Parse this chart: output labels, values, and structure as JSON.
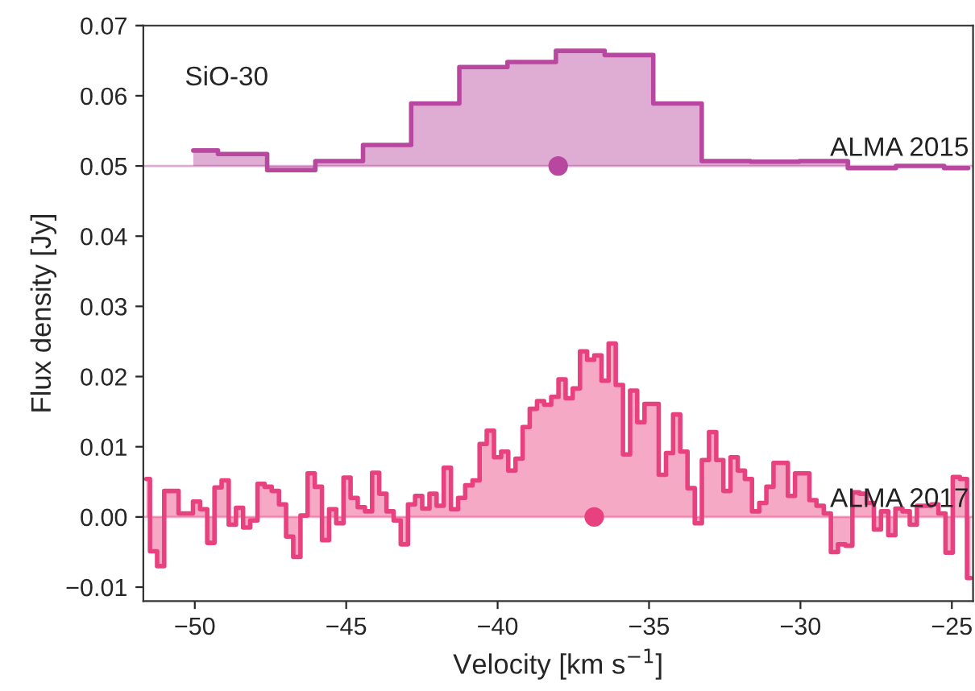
{
  "chart_data": {
    "type": "step",
    "xlabel": "Velocity [km s$^{−1}$]",
    "ylabel": "Flux density [Jy]",
    "annotations": [
      "SiO-30"
    ],
    "xlim": [
      -51.7,
      -24.3
    ],
    "xticks": [
      {
        "value": -50,
        "label": "−50"
      },
      {
        "value": -45,
        "label": "−45"
      },
      {
        "value": -40,
        "label": "−40"
      },
      {
        "value": -35,
        "label": "−35"
      },
      {
        "value": -30,
        "label": "−30"
      },
      {
        "value": -25,
        "label": "−25"
      }
    ],
    "ylim": [
      -0.012,
      0.07
    ],
    "yticks": [
      {
        "value": -0.01,
        "label": "−0.01"
      },
      {
        "value": 0.0,
        "label": "0.00"
      },
      {
        "value": 0.01,
        "label": "0.01"
      },
      {
        "value": 0.02,
        "label": "0.02"
      },
      {
        "value": 0.03,
        "label": "0.03"
      },
      {
        "value": 0.04,
        "label": "0.04"
      },
      {
        "value": 0.05,
        "label": "0.05"
      },
      {
        "value": 0.06,
        "label": "0.06"
      },
      {
        "value": 0.07,
        "label": "0.07"
      }
    ],
    "grid": false,
    "legend": false,
    "ref_lines": [
      {
        "axis": "y",
        "value": 0.05,
        "color": "#dfa9d2"
      },
      {
        "axis": "y",
        "value": 0.0,
        "color": "#f3a9c5"
      }
    ],
    "series": [
      {
        "name": "ALMA 2015",
        "color": "#b8489f",
        "x": [
          -50.05,
          -48.42,
          -46.8,
          -45.24,
          -43.65,
          -42.06,
          -40.47,
          -38.88,
          -37.27,
          -35.66,
          -34.06,
          -32.46,
          -30.84,
          -29.23,
          -27.64,
          -26.05,
          -24.46
        ],
        "values": [
          0.0522,
          0.0517,
          0.0494,
          0.0507,
          0.053,
          0.0589,
          0.0641,
          0.0648,
          0.0664,
          0.0658,
          0.0589,
          0.0507,
          0.0506,
          0.0507,
          0.0497,
          0.05,
          0.0497
        ]
      },
      {
        "name": "ALMA 2017",
        "color": "#e8417f",
        "x": [
          -51.6,
          -51.36,
          -51.13,
          -50.89,
          -50.65,
          -50.42,
          -50.18,
          -49.94,
          -49.71,
          -49.47,
          -49.23,
          -49.0,
          -48.76,
          -48.52,
          -48.29,
          -48.05,
          -47.81,
          -47.58,
          -47.34,
          -47.1,
          -46.87,
          -46.63,
          -46.39,
          -46.16,
          -45.92,
          -45.68,
          -45.45,
          -45.21,
          -44.97,
          -44.74,
          -44.5,
          -44.26,
          -44.03,
          -43.79,
          -43.55,
          -43.32,
          -43.08,
          -42.84,
          -42.61,
          -42.37,
          -42.13,
          -41.9,
          -41.66,
          -41.42,
          -41.19,
          -40.95,
          -40.71,
          -40.48,
          -40.24,
          -40.0,
          -39.77,
          -39.53,
          -39.29,
          -39.06,
          -38.82,
          -38.58,
          -38.35,
          -38.11,
          -37.87,
          -37.64,
          -37.4,
          -37.16,
          -36.93,
          -36.69,
          -36.45,
          -36.22,
          -35.98,
          -35.74,
          -35.51,
          -35.27,
          -35.03,
          -34.8,
          -34.56,
          -34.32,
          -34.09,
          -33.85,
          -33.61,
          -33.37,
          -33.14,
          -32.9,
          -32.66,
          -32.43,
          -32.19,
          -31.95,
          -31.72,
          -31.48,
          -31.24,
          -31.01,
          -30.77,
          -30.53,
          -30.3,
          -30.06,
          -29.82,
          -29.59,
          -29.35,
          -29.11,
          -28.88,
          -28.64,
          -28.4,
          -28.17,
          -27.93,
          -27.69,
          -27.46,
          -27.22,
          -26.98,
          -26.75,
          -26.51,
          -26.27,
          -26.04,
          -25.8,
          -25.56,
          -25.33,
          -25.09,
          -24.85,
          -24.62,
          -24.38
        ],
        "values": [
          0.0054,
          -0.0049,
          -0.007,
          0.0037,
          0.0037,
          0.0005,
          0.0005,
          0.0022,
          0.0011,
          -0.0037,
          0.0042,
          0.0052,
          -0.0011,
          0.0013,
          -0.0015,
          -0.0005,
          0.0047,
          0.0043,
          0.0037,
          0.0018,
          -0.0028,
          -0.0057,
          0.0002,
          0.0062,
          0.0043,
          -0.0033,
          0.0011,
          -0.0009,
          0.0056,
          0.0027,
          0.0014,
          0.0008,
          0.0063,
          0.0033,
          0.0008,
          -0.0005,
          -0.0039,
          0.0018,
          0.003,
          0.0012,
          0.0033,
          0.0016,
          0.007,
          0.0011,
          0.0027,
          0.0045,
          0.0052,
          0.0104,
          0.0123,
          0.0085,
          0.0093,
          0.0066,
          0.0083,
          0.0128,
          0.0154,
          0.0165,
          0.016,
          0.0171,
          0.0196,
          0.0169,
          0.0183,
          0.0236,
          0.0224,
          0.023,
          0.0194,
          0.0247,
          0.0188,
          0.0089,
          0.018,
          0.0135,
          0.0161,
          0.0161,
          0.006,
          0.0091,
          0.0146,
          0.0093,
          0.0041,
          -0.0009,
          0.0081,
          0.0121,
          0.0081,
          0.0037,
          0.0085,
          0.0066,
          0.0054,
          0.0008,
          0.002,
          0.0043,
          0.0077,
          0.0077,
          0.003,
          0.0062,
          0.0062,
          0.0024,
          0.0016,
          0.0005,
          -0.005,
          -0.0039,
          -0.0041,
          0.0035,
          0.0033,
          0.002,
          -0.0018,
          0.0008,
          -0.0026,
          0.0012,
          0.0008,
          -0.0011,
          0.0016,
          0.0016,
          0.0018,
          0.0005,
          -0.0051,
          0.0057,
          0.0054,
          -0.0087
        ]
      },
      {
        "type": "scatter",
        "color": "#b8489f",
        "x": [
          -38.0
        ],
        "values": [
          0.05
        ]
      },
      {
        "type": "scatter",
        "color": "#e8417f",
        "x": [
          -36.81
        ],
        "values": [
          0.0
        ]
      }
    ]
  }
}
